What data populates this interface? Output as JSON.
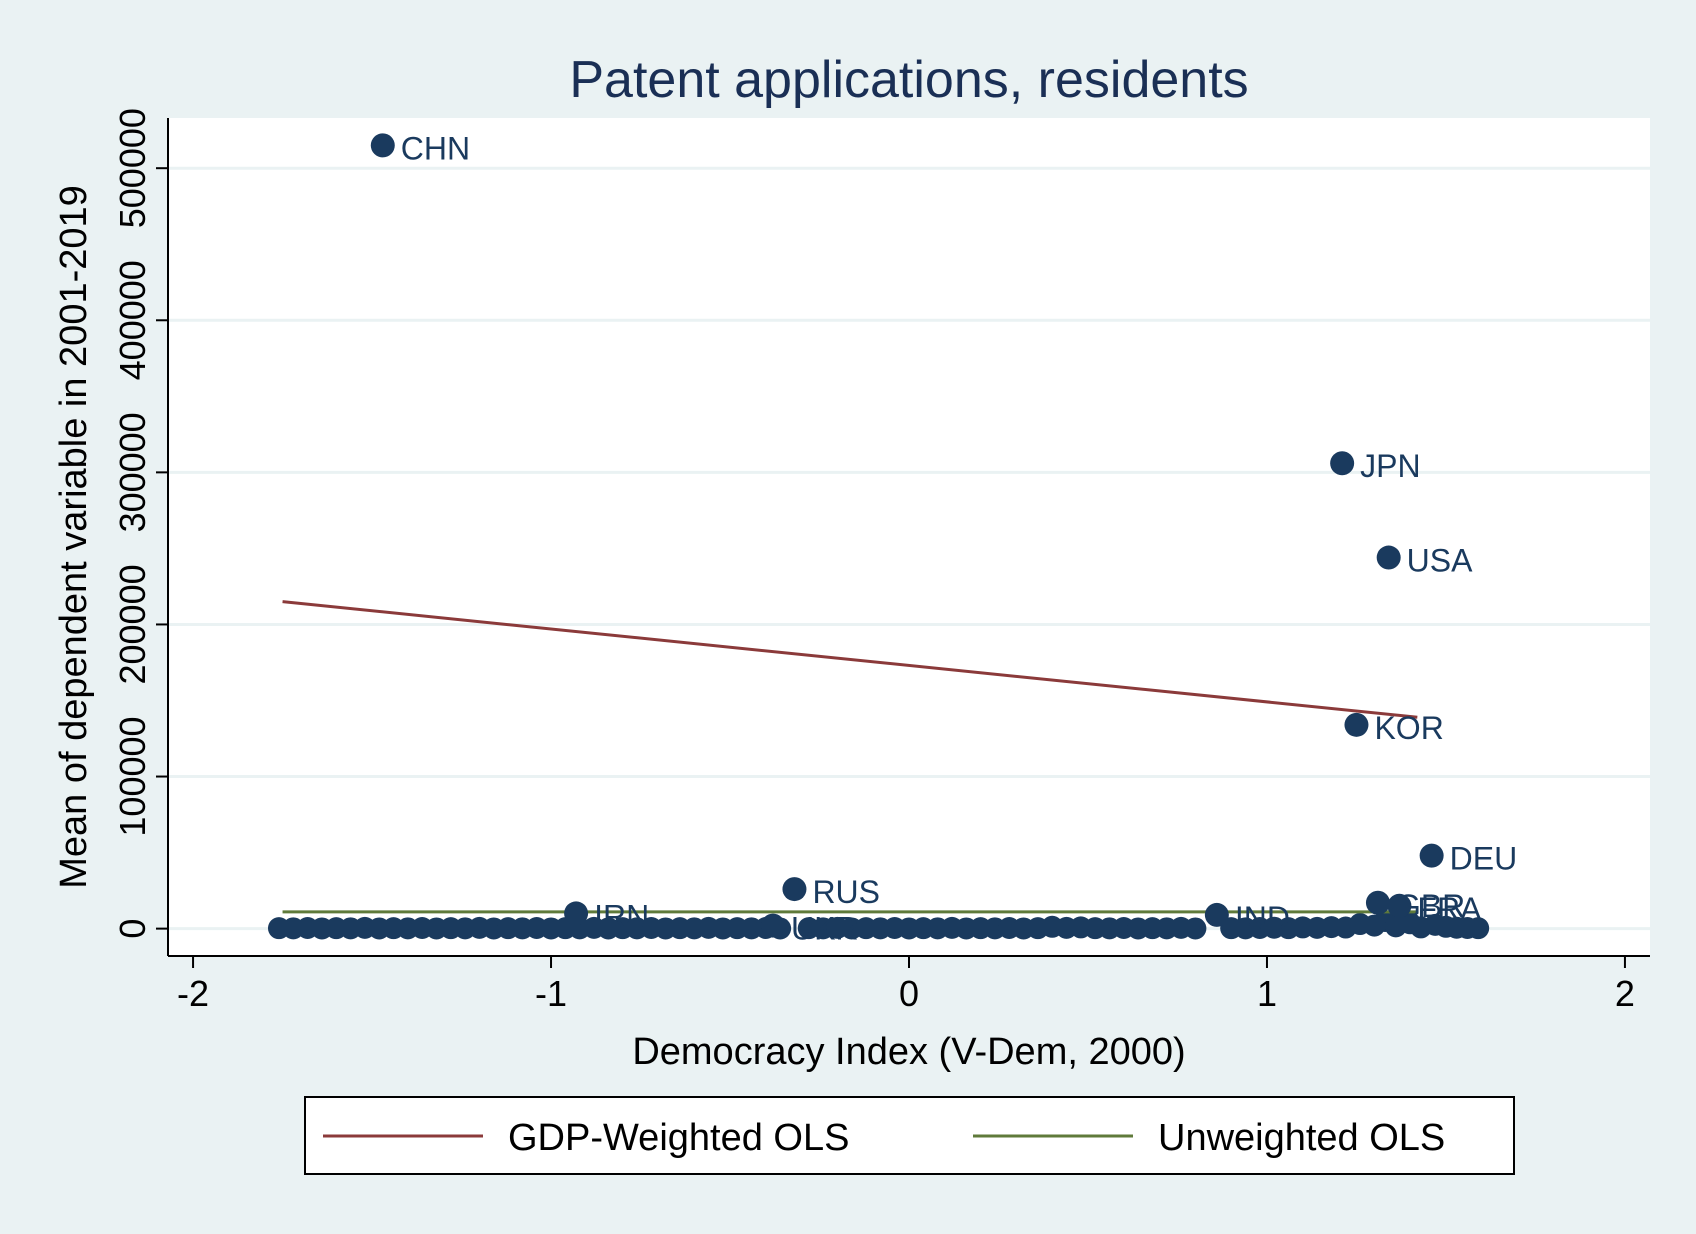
{
  "chart_data": {
    "type": "scatter",
    "title": "Patent applications, residents",
    "xlabel": "Democracy Index (V-Dem, 2000)",
    "ylabel": "Mean of dependent variable in 2001-2019",
    "xlim": [
      -2.07,
      2.07
    ],
    "ylim": [
      -18000,
      533000
    ],
    "xticks": [
      -2,
      -1,
      0,
      1,
      2
    ],
    "yticks": [
      0,
      100000,
      200000,
      300000,
      400000,
      500000
    ],
    "xtick_labels": [
      "-2",
      "-1",
      "0",
      "1",
      "2"
    ],
    "ytick_labels": [
      "0",
      "100000",
      "200000",
      "300000",
      "400000",
      "500000"
    ],
    "grid": "horizontal",
    "legend_position": "bottom",
    "labeled_points": [
      {
        "label": "CHN",
        "x": -1.47,
        "y": 515000
      },
      {
        "label": "JPN",
        "x": 1.21,
        "y": 306000
      },
      {
        "label": "USA",
        "x": 1.34,
        "y": 244000
      },
      {
        "label": "KOR",
        "x": 1.25,
        "y": 134000
      },
      {
        "label": "DEU",
        "x": 1.46,
        "y": 48000
      },
      {
        "label": "RUS",
        "x": -0.32,
        "y": 26000
      },
      {
        "label": "IRN",
        "x": -0.93,
        "y": 10000
      },
      {
        "label": "IND",
        "x": 0.86,
        "y": 9000
      },
      {
        "label": "GBR",
        "x": 1.31,
        "y": 17000
      },
      {
        "label": "FRA",
        "x": 1.37,
        "y": 15000
      },
      {
        "label": "UKR",
        "x": -0.38,
        "y": 2000
      }
    ],
    "cluster_points": [
      {
        "x": -1.76,
        "y": 300
      },
      {
        "x": -1.72,
        "y": 200
      },
      {
        "x": -1.68,
        "y": 400
      },
      {
        "x": -1.64,
        "y": 100
      },
      {
        "x": -1.6,
        "y": 300
      },
      {
        "x": -1.56,
        "y": 200
      },
      {
        "x": -1.52,
        "y": 500
      },
      {
        "x": -1.48,
        "y": 100
      },
      {
        "x": -1.44,
        "y": 300
      },
      {
        "x": -1.4,
        "y": 200
      },
      {
        "x": -1.36,
        "y": 400
      },
      {
        "x": -1.32,
        "y": 100
      },
      {
        "x": -1.28,
        "y": 300
      },
      {
        "x": -1.24,
        "y": 200
      },
      {
        "x": -1.2,
        "y": 500
      },
      {
        "x": -1.16,
        "y": 100
      },
      {
        "x": -1.12,
        "y": 300
      },
      {
        "x": -1.08,
        "y": 200
      },
      {
        "x": -1.04,
        "y": 400
      },
      {
        "x": -1.0,
        "y": 100
      },
      {
        "x": -0.96,
        "y": 300
      },
      {
        "x": -0.92,
        "y": 200
      },
      {
        "x": -0.88,
        "y": 500
      },
      {
        "x": -0.84,
        "y": 100
      },
      {
        "x": -0.8,
        "y": 300
      },
      {
        "x": -0.76,
        "y": 200
      },
      {
        "x": -0.72,
        "y": 400
      },
      {
        "x": -0.68,
        "y": 100
      },
      {
        "x": -0.64,
        "y": 300
      },
      {
        "x": -0.6,
        "y": 200
      },
      {
        "x": -0.56,
        "y": 500
      },
      {
        "x": -0.52,
        "y": 100
      },
      {
        "x": -0.48,
        "y": 300
      },
      {
        "x": -0.44,
        "y": 200
      },
      {
        "x": -0.4,
        "y": 400
      },
      {
        "x": -0.36,
        "y": 100
      },
      {
        "x": -0.28,
        "y": 300
      },
      {
        "x": -0.24,
        "y": 200
      },
      {
        "x": -0.2,
        "y": 500
      },
      {
        "x": -0.16,
        "y": 100
      },
      {
        "x": -0.12,
        "y": 300
      },
      {
        "x": -0.08,
        "y": 200
      },
      {
        "x": -0.04,
        "y": 400
      },
      {
        "x": 0.0,
        "y": 100
      },
      {
        "x": 0.04,
        "y": 300
      },
      {
        "x": 0.08,
        "y": 200
      },
      {
        "x": 0.12,
        "y": 500
      },
      {
        "x": 0.16,
        "y": 100
      },
      {
        "x": 0.2,
        "y": 300
      },
      {
        "x": 0.24,
        "y": 200
      },
      {
        "x": 0.28,
        "y": 400
      },
      {
        "x": 0.32,
        "y": 100
      },
      {
        "x": 0.36,
        "y": 300
      },
      {
        "x": 0.4,
        "y": 1200
      },
      {
        "x": 0.44,
        "y": 500
      },
      {
        "x": 0.48,
        "y": 800
      },
      {
        "x": 0.52,
        "y": 300
      },
      {
        "x": 0.56,
        "y": 200
      },
      {
        "x": 0.6,
        "y": 400
      },
      {
        "x": 0.64,
        "y": 100
      },
      {
        "x": 0.68,
        "y": 300
      },
      {
        "x": 0.72,
        "y": 200
      },
      {
        "x": 0.76,
        "y": 500
      },
      {
        "x": 0.8,
        "y": 100
      },
      {
        "x": 0.9,
        "y": 300
      },
      {
        "x": 0.94,
        "y": 200
      },
      {
        "x": 0.98,
        "y": 400
      },
      {
        "x": 1.02,
        "y": 600
      },
      {
        "x": 1.06,
        "y": 300
      },
      {
        "x": 1.1,
        "y": 800
      },
      {
        "x": 1.14,
        "y": 500
      },
      {
        "x": 1.18,
        "y": 1000
      },
      {
        "x": 1.22,
        "y": 700
      },
      {
        "x": 1.26,
        "y": 3000
      },
      {
        "x": 1.3,
        "y": 2000
      },
      {
        "x": 1.33,
        "y": 5000
      },
      {
        "x": 1.36,
        "y": 1500
      },
      {
        "x": 1.4,
        "y": 3500
      },
      {
        "x": 1.43,
        "y": 800
      },
      {
        "x": 1.47,
        "y": 2500
      },
      {
        "x": 1.5,
        "y": 1200
      },
      {
        "x": 1.53,
        "y": 600
      },
      {
        "x": 1.56,
        "y": 400
      },
      {
        "x": 1.59,
        "y": 300
      }
    ],
    "series": [
      {
        "name": "GDP-Weighted OLS",
        "color": "#8b3a3a",
        "x": [
          -1.75,
          1.42
        ],
        "y": [
          215000,
          139000
        ]
      },
      {
        "name": "Unweighted OLS",
        "color": "#5f7a3a",
        "x": [
          -1.75,
          1.42
        ],
        "y": [
          11000,
          11000
        ]
      }
    ],
    "marker_color": "#1a3a5e"
  }
}
